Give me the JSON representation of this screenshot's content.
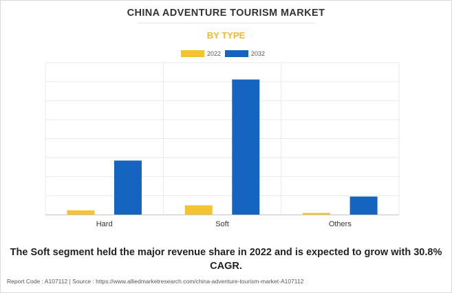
{
  "header": {
    "title": "CHINA ADVENTURE TOURISM MARKET",
    "subtitle": "BY TYPE"
  },
  "colors": {
    "series_2022": "#f4c430",
    "series_2032": "#1565c0",
    "subtitle": "#f2b92a"
  },
  "chart_data": {
    "type": "bar",
    "categories": [
      "Hard",
      "Soft",
      "Others"
    ],
    "series": [
      {
        "name": "2022",
        "values": [
          0.25,
          0.55,
          0.1
        ]
      },
      {
        "name": "2032",
        "values": [
          3.2,
          8.0,
          1.07
        ]
      }
    ],
    "ylim": [
      0,
      9
    ],
    "grid": true,
    "legend": "top-center",
    "xlabel": "",
    "ylabel": ""
  },
  "caption": "The Soft segment held the major revenue share in 2022 and is expected to grow with 30.8% CAGR.",
  "footer": "Report Code : A107112  |  Source : https://www.alliedmarketresearch.com/china-adventure-tourism-market-A107112"
}
